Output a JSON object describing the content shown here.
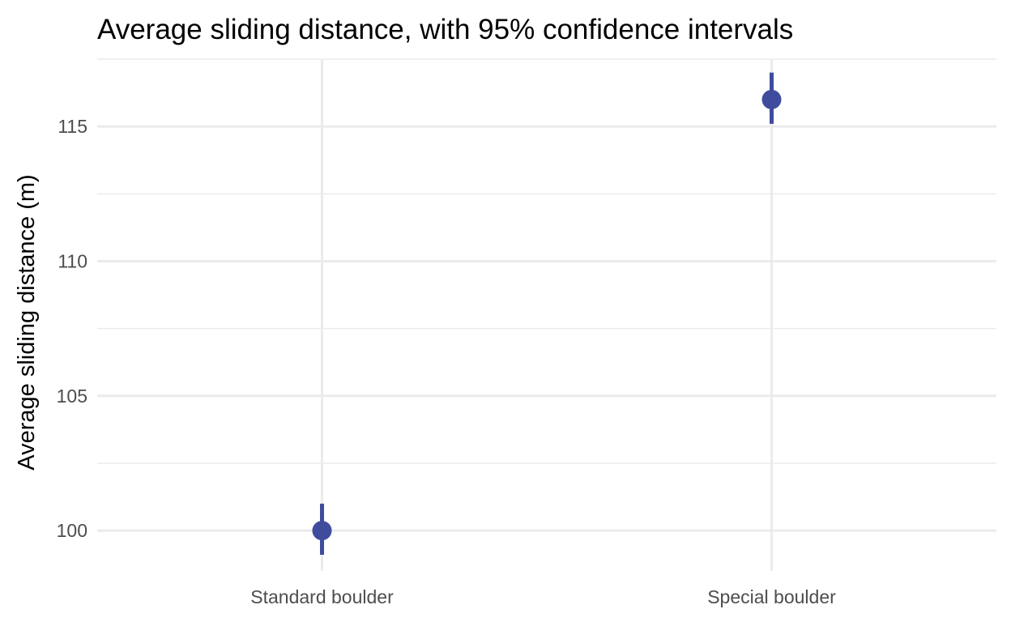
{
  "chart_data": {
    "type": "scatter",
    "title": "Average sliding distance, with 95% confidence intervals",
    "xlabel": "",
    "ylabel": "Average sliding distance (m)",
    "categories": [
      "Standard boulder",
      "Special boulder"
    ],
    "series": [
      {
        "values": [
          100,
          116
        ],
        "ci_lower": [
          99.1,
          115.1
        ],
        "ci_upper": [
          101.0,
          117.0
        ]
      }
    ],
    "ylim": [
      98.5,
      117.5
    ],
    "yticks": [
      100,
      105,
      110,
      115
    ],
    "ytick_labels": [
      "100",
      "105",
      "110",
      "115"
    ],
    "grid": true,
    "legend": "none",
    "colors": {
      "point": "#3f4c9e",
      "grid": "#ebebeb",
      "tick_text": "#4d4d4d",
      "title_text": "#000000"
    }
  }
}
